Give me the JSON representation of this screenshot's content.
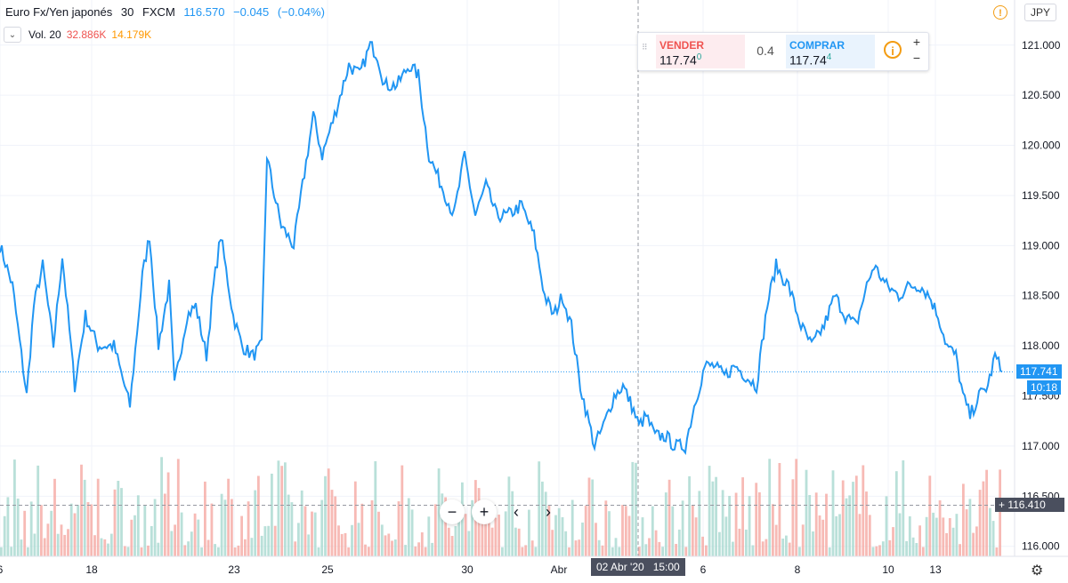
{
  "legend": {
    "symbol": "Euro Fx/Yen japonés",
    "interval": "30",
    "exchange": "FXCM",
    "price": "116.570",
    "change": "−0.045",
    "change_pct": "(−0.04%)"
  },
  "volume_legend": {
    "label": "Vol. 20",
    "v1": "32.886K",
    "v2": "14.179K"
  },
  "trade_panel": {
    "sell_label": "VENDER",
    "sell_value": "117.74",
    "sell_sup": "0",
    "spread": "0.4",
    "buy_label": "COMPRAR",
    "buy_value": "117.74",
    "buy_sup": "4",
    "plus": "+",
    "minus": "−"
  },
  "currency": "JPY",
  "crosshair": {
    "date_label": "02 Abr '20",
    "time_label": "15:00",
    "price_label": "116.410"
  },
  "last": {
    "price_label": "117.741",
    "countdown": "10:18"
  },
  "nav": {
    "zoom_out": "−",
    "zoom_in": "+",
    "prev": "‹",
    "next": "›"
  },
  "colors": {
    "line": "#2196f3",
    "vol_up": "#a7d8cf",
    "vol_down": "#f5a9a3",
    "red_text": "#ef5350",
    "orange_text": "#ff9800",
    "blue_text": "#2196f3",
    "sell": "#ef5350",
    "buy": "#2196f3"
  },
  "chart_data": {
    "type": "line",
    "title": "Euro Fx/Yen japonés",
    "xlabel": "",
    "ylabel": "",
    "ylim": [
      115.9,
      121.45
    ],
    "y_ticks": [
      "116.000",
      "116.500",
      "117.000",
      "117.500",
      "118.000",
      "118.500",
      "119.000",
      "119.500",
      "120.000",
      "120.500",
      "121.000"
    ],
    "x_ticks": [
      {
        "label": "6",
        "t": 0
      },
      {
        "label": "18",
        "t": 103
      },
      {
        "label": "23",
        "t": 263
      },
      {
        "label": "25",
        "t": 368
      },
      {
        "label": "30",
        "t": 525
      },
      {
        "label": "Abr",
        "t": 628
      },
      {
        "label": "6",
        "t": 790
      },
      {
        "label": "8",
        "t": 896
      },
      {
        "label": "10",
        "t": 998
      },
      {
        "label": "13",
        "t": 1051
      }
    ],
    "series": [
      {
        "values_t": [
          0,
          14,
          30,
          38,
          48,
          60,
          70,
          84,
          96,
          110,
          128,
          140,
          146,
          160,
          168,
          178,
          190,
          196,
          210,
          220,
          232,
          240,
          248,
          262,
          272,
          284,
          294,
          300,
          306,
          316,
          330,
          340,
          352,
          362,
          376,
          392,
          404,
          416,
          424,
          432,
          446,
          460,
          470,
          482,
          496,
          510,
          522,
          534,
          546,
          558,
          570,
          586,
          600,
          612,
          622,
          632,
          642,
          652,
          660,
          668,
          678,
          690,
          700,
          710,
          718,
          726,
          736,
          748,
          758,
          770,
          780,
          792,
          802,
          814,
          826,
          838,
          850,
          862,
          872,
          878,
          886,
          900,
          912,
          926,
          938,
          950,
          962,
          974,
          982,
          996,
          1010,
          1022,
          1034,
          1044,
          1054,
          1064,
          1074,
          1082,
          1090,
          1100,
          1110,
          1118,
          1126
        ],
        "values": [
          119.0,
          118.6,
          117.5,
          118.4,
          118.8,
          118.0,
          118.9,
          117.6,
          118.3,
          118.0,
          118.0,
          117.6,
          117.4,
          118.7,
          119.1,
          118.0,
          118.6,
          117.6,
          118.3,
          118.4,
          117.9,
          118.6,
          119.1,
          118.3,
          118.0,
          117.9,
          118.0,
          119.9,
          119.6,
          119.2,
          119.0,
          119.6,
          120.3,
          119.9,
          120.3,
          120.8,
          120.7,
          121.0,
          120.9,
          120.6,
          120.6,
          120.8,
          120.7,
          119.9,
          119.6,
          119.3,
          119.9,
          119.3,
          119.6,
          119.3,
          119.3,
          119.4,
          119.1,
          118.5,
          118.3,
          118.5,
          118.2,
          117.6,
          117.3,
          117.0,
          117.2,
          117.5,
          117.6,
          117.4,
          117.2,
          117.3,
          117.1,
          117.1,
          117.0,
          117.0,
          117.4,
          117.8,
          117.8,
          117.7,
          117.8,
          117.7,
          117.6,
          118.4,
          118.8,
          118.7,
          118.6,
          118.2,
          118.0,
          118.2,
          118.5,
          118.3,
          118.2,
          118.6,
          118.8,
          118.6,
          118.5,
          118.6,
          118.6,
          118.5,
          118.3,
          118.0,
          117.9,
          117.5,
          117.3,
          117.5,
          117.6,
          117.9,
          117.74
        ]
      }
    ],
    "volume": {
      "n": 300,
      "ylim_px": [
        514,
        626
      ]
    },
    "last_price": 117.741,
    "crosshair_price": 116.41,
    "crosshair_t": 717,
    "grid": true
  }
}
